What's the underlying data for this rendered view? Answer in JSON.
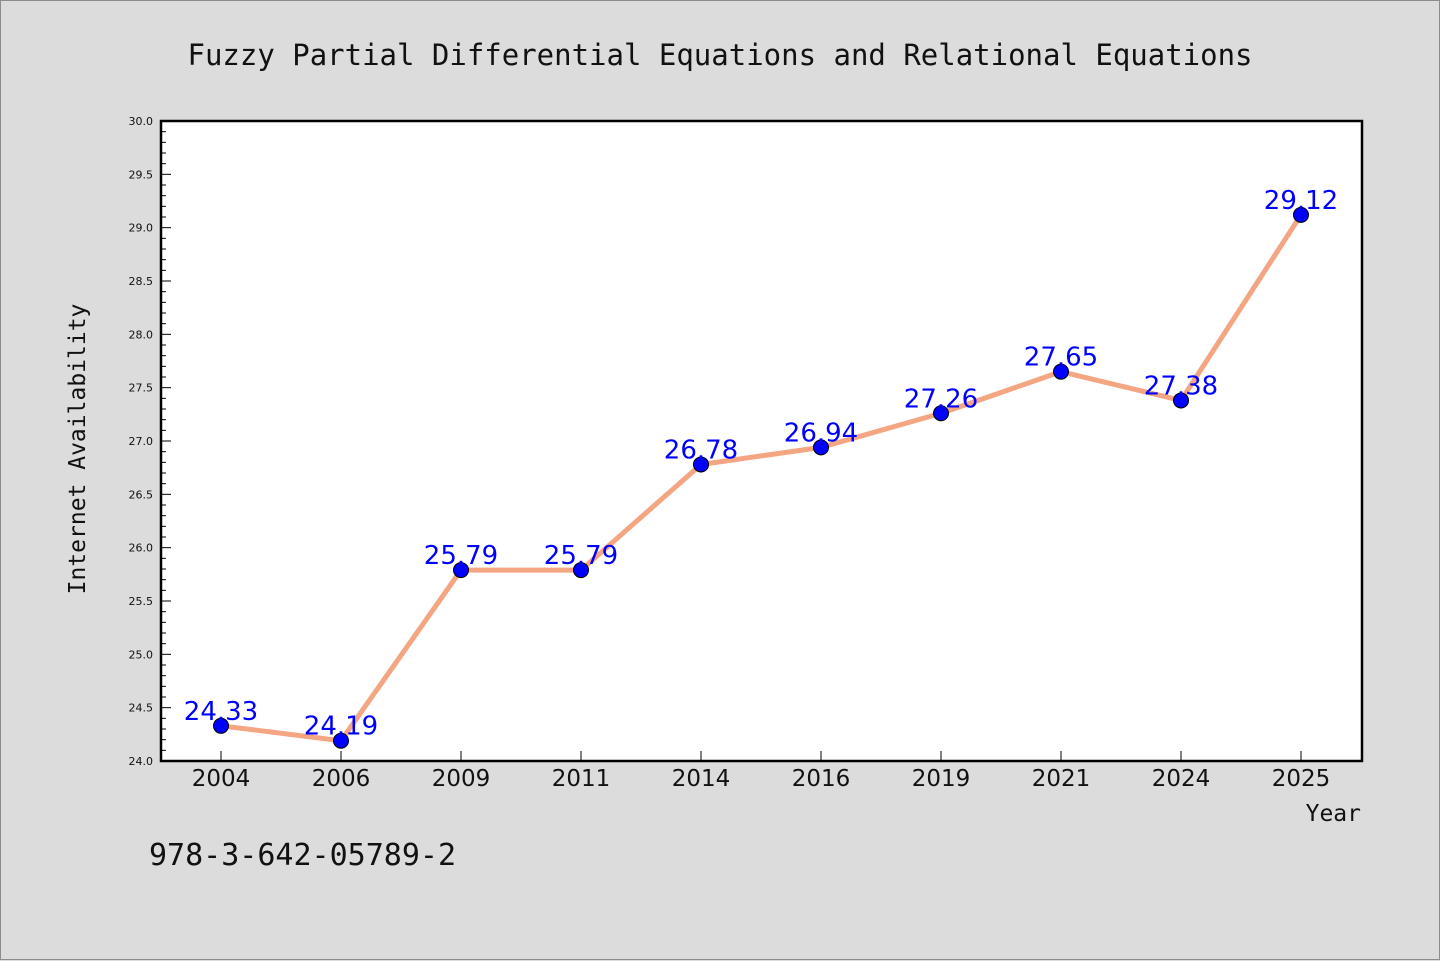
{
  "footer_text": "978-3-642-05789-2",
  "chart_data": {
    "type": "line",
    "title": "Fuzzy Partial Differential Equations and Relational Equations",
    "xlabel": "Year",
    "ylabel": "Internet Availability",
    "categories": [
      "2004",
      "2006",
      "2009",
      "2011",
      "2014",
      "2016",
      "2019",
      "2021",
      "2024",
      "2025"
    ],
    "series": [
      {
        "values": [
          24.33,
          24.19,
          25.79,
          25.79,
          26.78,
          26.94,
          27.26,
          27.65,
          27.38,
          29.12
        ],
        "data_labels": [
          "24.33",
          "24.19",
          "25.79",
          "25.79",
          "26.78",
          "26.94",
          "27.26",
          "27.65",
          "27.38",
          "29.12"
        ],
        "line_color": "#f4a582",
        "marker_color": "#0000ff"
      }
    ],
    "ylim": [
      24.0,
      30.0
    ],
    "yticks": [
      "24.0",
      "24.5",
      "25.0",
      "25.5",
      "26.0",
      "26.5",
      "27.0",
      "27.5",
      "28.0",
      "28.5",
      "29.0",
      "29.5",
      "30.0"
    ],
    "grid": false,
    "legend": "none",
    "background_color": "#dcdcdc",
    "plot_background_color": "#ffffff",
    "data_label_color": "#0000ff"
  }
}
